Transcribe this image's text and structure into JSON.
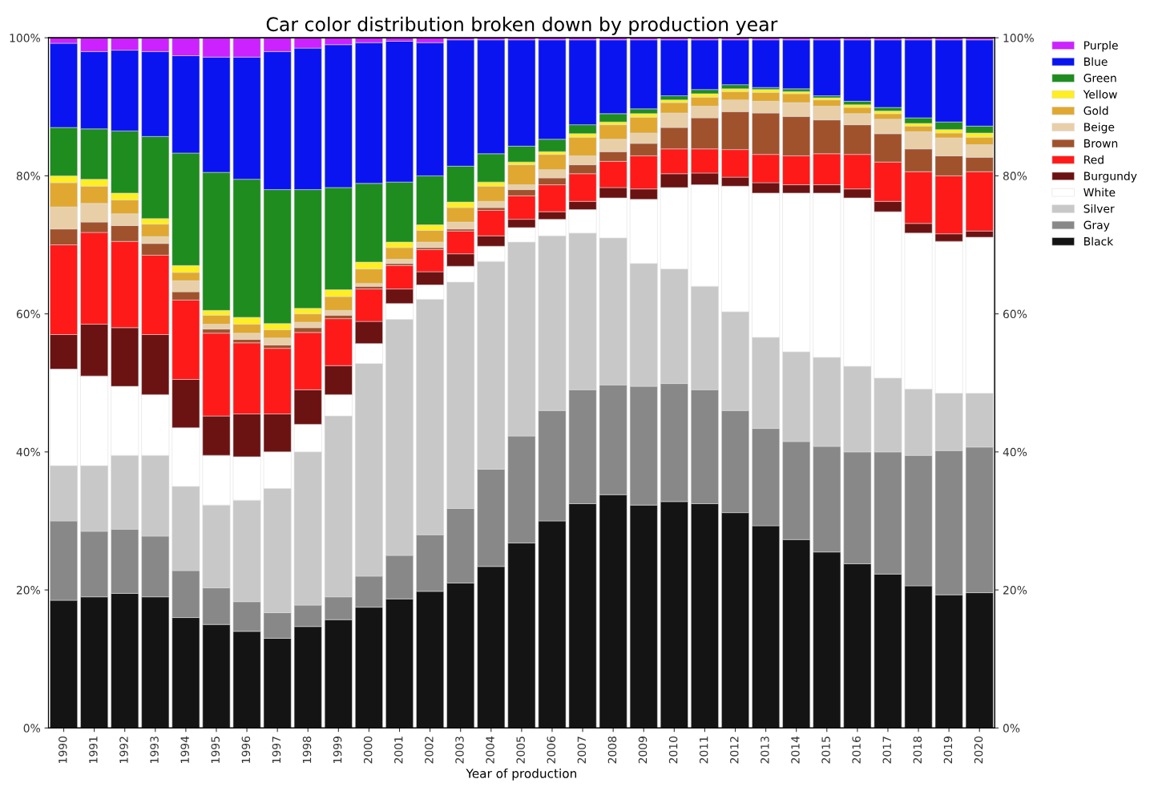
{
  "chart_data": {
    "type": "bar",
    "stacked": true,
    "title": "Car color distribution broken down by production year",
    "xlabel": "Year of production",
    "categories": [
      "1990",
      "1991",
      "1992",
      "1993",
      "1994",
      "1995",
      "1996",
      "1997",
      "1998",
      "1999",
      "2000",
      "2001",
      "2002",
      "2003",
      "2004",
      "2005",
      "2006",
      "2007",
      "2008",
      "2009",
      "2010",
      "2011",
      "2012",
      "2013",
      "2014",
      "2015",
      "2016",
      "2017",
      "2018",
      "2019",
      "2020"
    ],
    "ylim": [
      0,
      100
    ],
    "yticks": [
      {
        "value": 0,
        "label": "0%"
      },
      {
        "value": 20,
        "label": "20%"
      },
      {
        "value": 40,
        "label": "40%"
      },
      {
        "value": 60,
        "label": "60%"
      },
      {
        "value": 80,
        "label": "80%"
      },
      {
        "value": 100,
        "label": "100%"
      }
    ],
    "y2lim": [
      0,
      100
    ],
    "y2ticks": [
      {
        "value": 0,
        "label": "0%"
      },
      {
        "value": 20,
        "label": "20%"
      },
      {
        "value": 40,
        "label": "40%"
      },
      {
        "value": 60,
        "label": "60%"
      },
      {
        "value": 80,
        "label": "80%"
      },
      {
        "value": 100,
        "label": "100%"
      }
    ],
    "grid": false,
    "legend": "right",
    "series": [
      {
        "name": "Black",
        "color": "#141414",
        "values": [
          18.5,
          19,
          19.5,
          19,
          16,
          15,
          14,
          13,
          14.7,
          15.7,
          17.5,
          18.7,
          19.8,
          21,
          23.4,
          26.8,
          30,
          32.5,
          33.8,
          32.3,
          32.8,
          32.5,
          31.2,
          29.3,
          27.3,
          25.5,
          23.8,
          22.3,
          20.6,
          19.3,
          19.6
        ]
      },
      {
        "name": "Gray",
        "color": "#888888",
        "values": [
          11.5,
          9.5,
          9.3,
          8.8,
          6.8,
          5.3,
          4.3,
          3.7,
          3.1,
          3.3,
          4.5,
          6.3,
          8.2,
          10.8,
          14.1,
          15.5,
          16,
          16.5,
          15.9,
          17.2,
          17.1,
          16.5,
          14.8,
          14.1,
          14.2,
          15.3,
          16.2,
          17.7,
          18.9,
          20.9,
          21.1
        ]
      },
      {
        "name": "Silver",
        "color": "#c8c8c8",
        "values": [
          8,
          9.5,
          10.7,
          11.7,
          12.2,
          12,
          14.7,
          18,
          22.2,
          26.2,
          30.8,
          34.2,
          34.1,
          32.8,
          30.1,
          28.1,
          25.3,
          22.7,
          21.3,
          17.8,
          16.6,
          15,
          14.3,
          13.2,
          13,
          12.9,
          12.4,
          10.7,
          9.6,
          8.3,
          7.8
        ]
      },
      {
        "name": "White",
        "color": "#ffffff",
        "values": [
          14,
          13,
          10,
          8.8,
          8.5,
          7.2,
          6.3,
          5.3,
          4,
          3.1,
          2.9,
          2.3,
          2.1,
          2.3,
          2.2,
          2.1,
          2.4,
          3.4,
          5.8,
          9.3,
          11.8,
          14.7,
          18.2,
          20.9,
          23,
          23.8,
          24.4,
          24.1,
          22.6,
          22,
          22.6
        ]
      },
      {
        "name": "Burgundy",
        "color": "#6b1212",
        "values": [
          5,
          7.5,
          8.5,
          8.7,
          7,
          5.7,
          6.2,
          5.5,
          5,
          4.2,
          3.2,
          2.1,
          1.9,
          1.8,
          1.5,
          1.2,
          1.1,
          1.2,
          1.5,
          1.5,
          2,
          1.7,
          1.3,
          1.5,
          1.2,
          1.2,
          1.3,
          1.5,
          1.4,
          1.1,
          0.9
        ]
      },
      {
        "name": "Red",
        "color": "#ff1a1a",
        "values": [
          13,
          13.3,
          12.5,
          11.5,
          11.5,
          12,
          10.3,
          9.5,
          8.3,
          6.8,
          4.7,
          3.4,
          3.2,
          3.3,
          3.7,
          3.4,
          3.9,
          4,
          3.8,
          4.8,
          3.6,
          3.5,
          4,
          4.1,
          4.2,
          4.5,
          5,
          5.7,
          7.5,
          8.4,
          8.6
        ]
      },
      {
        "name": "Brown",
        "color": "#a0522d",
        "values": [
          2.3,
          1.5,
          2.3,
          1.7,
          1.2,
          0.6,
          0.5,
          0.5,
          0.7,
          0.5,
          0.4,
          0.3,
          0.3,
          0.3,
          0.4,
          0.9,
          1,
          1.3,
          1.4,
          1.8,
          3.1,
          4.5,
          5.5,
          6,
          5.7,
          4.9,
          4.3,
          4.1,
          3.3,
          2.9,
          2.1
        ]
      },
      {
        "name": "Beige",
        "color": "#e8cfa8",
        "values": [
          3.2,
          2.7,
          1.7,
          1,
          1.6,
          0.7,
          0.9,
          1,
          0.8,
          0.7,
          0.4,
          0.6,
          0.8,
          1,
          0.9,
          0.7,
          1.2,
          1.3,
          1.8,
          1.5,
          2.1,
          1.7,
          1.7,
          1.7,
          2,
          2,
          1.6,
          2.1,
          2.5,
          2.6,
          1.8
        ]
      },
      {
        "name": "Gold",
        "color": "#e0a830",
        "values": [
          3.5,
          2.5,
          2,
          1.8,
          1.2,
          1.3,
          1.3,
          1.2,
          1.2,
          2,
          2.1,
          1.7,
          1.7,
          2.1,
          2.2,
          2.9,
          2.2,
          2.7,
          2.1,
          2.3,
          1.5,
          1.3,
          1.2,
          1.3,
          1.3,
          0.9,
          0.9,
          0.8,
          0.8,
          0.7,
          1.1
        ]
      },
      {
        "name": "Yellow",
        "color": "#ffee22",
        "values": [
          1,
          1,
          1,
          0.8,
          1,
          0.7,
          1,
          0.9,
          0.8,
          1,
          1,
          0.8,
          0.8,
          0.8,
          0.6,
          0.4,
          0.4,
          0.5,
          0.4,
          0.5,
          0.4,
          0.5,
          0.4,
          0.4,
          0.3,
          0.3,
          0.4,
          0.4,
          0.4,
          0.5,
          0.6
        ]
      },
      {
        "name": "Green",
        "color": "#1e8c1e",
        "values": [
          7,
          7.3,
          9,
          11.9,
          16.3,
          20,
          20,
          19.4,
          17.2,
          14.8,
          11.4,
          8.7,
          7.1,
          5.2,
          4.1,
          2.3,
          1.8,
          1.3,
          1.2,
          0.7,
          0.6,
          0.6,
          0.6,
          0.3,
          0.4,
          0.3,
          0.5,
          0.5,
          0.8,
          1.1,
          1
        ]
      },
      {
        "name": "Blue",
        "color": "#0a14f0",
        "values": [
          12.2,
          11.2,
          11.7,
          12.3,
          14.1,
          16.7,
          17.7,
          20,
          20.5,
          20.7,
          20.4,
          20.4,
          19.3,
          18.3,
          16.5,
          15.4,
          14.4,
          12.3,
          10.7,
          10,
          8.1,
          7.2,
          6.5,
          6.9,
          7.1,
          8.1,
          8.9,
          9.8,
          11.3,
          11.9,
          12.5
        ]
      },
      {
        "name": "Purple",
        "color": "#cc22ff",
        "values": [
          0.8,
          2,
          1.8,
          2,
          2.6,
          2.8,
          2.8,
          2,
          1.5,
          1,
          0.7,
          0.5,
          0.7,
          0.3,
          0.3,
          0.3,
          0.3,
          0.3,
          0.3,
          0.3,
          0.3,
          0.3,
          0.3,
          0.3,
          0.3,
          0.3,
          0.3,
          0.3,
          0.3,
          0.3,
          0.3
        ]
      }
    ]
  }
}
